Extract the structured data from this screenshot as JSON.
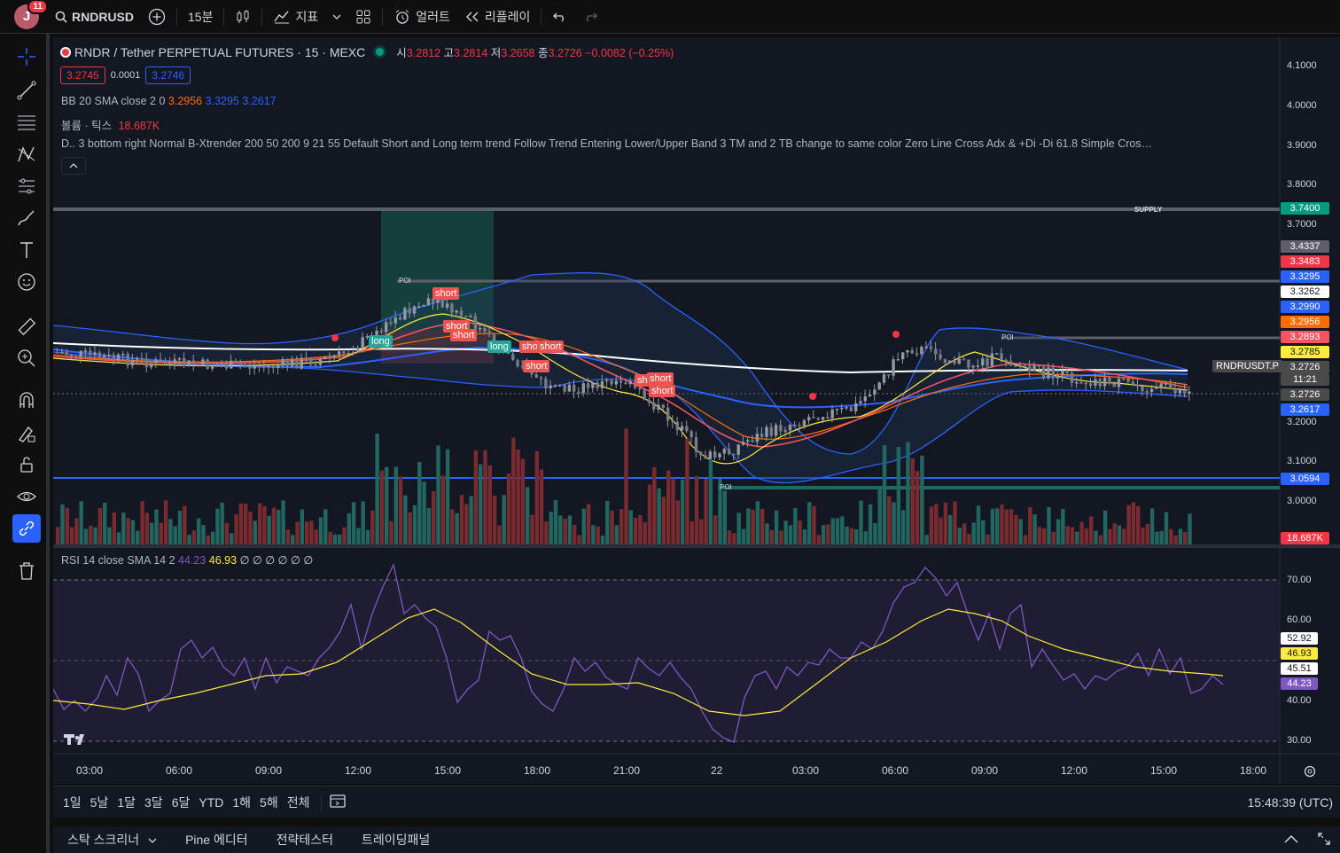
{
  "topbar": {
    "avatar_letter": "J",
    "notification_count": "11",
    "symbol": "RNDRUSD",
    "interval": "15분",
    "indicators": "지표",
    "alerts": "얼러트",
    "replay": "리플레이"
  },
  "legend": {
    "title": "RNDR / Tether PERPETUAL FUTURES · 15 · MEXC",
    "o_label": "시",
    "o": "3.2812",
    "h_label": "고",
    "h": "3.2814",
    "l_label": "저",
    "l": "3.2658",
    "c_label": "종",
    "c": "3.2726",
    "change": "−0.0082 (−0.25%)",
    "bid": "3.2745",
    "spread": "0.0001",
    "ask": "3.2746",
    "bb_label": "BB 20 SMA close 2 0",
    "bb_basis": "3.2956",
    "bb_upper": "3.3295",
    "bb_lower": "3.2617",
    "vol_label": "볼륨 · 틱스",
    "vol_value": "18.687K",
    "ind_label": "D..",
    "ind_text": "3 bottom right Normal B-Xtrender 200 50 200 9 21 55 Default Short and Long term trend Follow Trend Entering Lower/Upper Band 3 TM and 2 TB change to same color Zero Line Cross Adx & +Di -Di 61.8 Simple Cros…",
    "rsi_label": "RSI 14 close SMA 14 2",
    "rsi_value": "44.23",
    "rsi_sma": "46.93",
    "rsi_rest": "∅ ∅ ∅ ∅ ∅ ∅"
  },
  "price_axis": [
    "4.1000",
    "4.0000",
    "3.9000",
    "3.8000",
    "3.7000",
    "3.2000",
    "3.1000",
    "3.0000"
  ],
  "price_tags": [
    {
      "text": "3.7400",
      "color": "#089981"
    },
    {
      "text": "3.4337",
      "color": "#5d606b"
    },
    {
      "text": "3.3483",
      "color": "#f23645"
    },
    {
      "text": "3.3295",
      "color": "#2962ff"
    },
    {
      "text": "3.3262",
      "color": "#ffffff"
    },
    {
      "text": "3.2990",
      "color": "#2962ff"
    },
    {
      "text": "3.2956",
      "color": "#ff6d00"
    },
    {
      "text": "3.2893",
      "color": "#f7525f"
    },
    {
      "text": "3.2785",
      "color": "#ffeb3b"
    },
    {
      "text": "3.2726",
      "color": "#4a4a4a"
    },
    {
      "text": "11:21",
      "color": "#4a4a4a"
    },
    {
      "text": "3.2726",
      "color": "#4a4a4a"
    },
    {
      "text": "3.2617",
      "color": "#2962ff"
    },
    {
      "text": "3.0594",
      "color": "#2962ff"
    },
    {
      "text": "18.687K",
      "color": "#f23645"
    }
  ],
  "symbol_tag": "RNDRUSDT.P",
  "labels": {
    "supply": "SUPPLY",
    "poi": "POI",
    "long": "long",
    "short": "short"
  },
  "rsi_axis": [
    "70.00",
    "60.00",
    "40.00",
    "30.00"
  ],
  "rsi_tags": [
    {
      "text": "52.92",
      "color": "#ffffff"
    },
    {
      "text": "46.93",
      "color": "#ffeb3b"
    },
    {
      "text": "45.51",
      "color": "#ffffff"
    },
    {
      "text": "44.23",
      "color": "#7e57c2"
    }
  ],
  "time_axis": [
    "03:00",
    "06:00",
    "09:00",
    "12:00",
    "15:00",
    "18:00",
    "21:00",
    "22",
    "03:00",
    "06:00",
    "09:00",
    "12:00",
    "15:00",
    "18:00"
  ],
  "bottombar": {
    "ranges": [
      "1일",
      "5날",
      "1달",
      "3달",
      "6달",
      "YTD",
      "1해",
      "5해",
      "전체"
    ],
    "clock": "15:48:39 (UTC)"
  },
  "panelbar": {
    "items": [
      "스탁 스크리너",
      "Pine 에디터",
      "전략테스터",
      "트레이딩패널"
    ]
  },
  "colors": {
    "up": "#26a69a",
    "down": "#ef5350",
    "bg": "#131722"
  }
}
